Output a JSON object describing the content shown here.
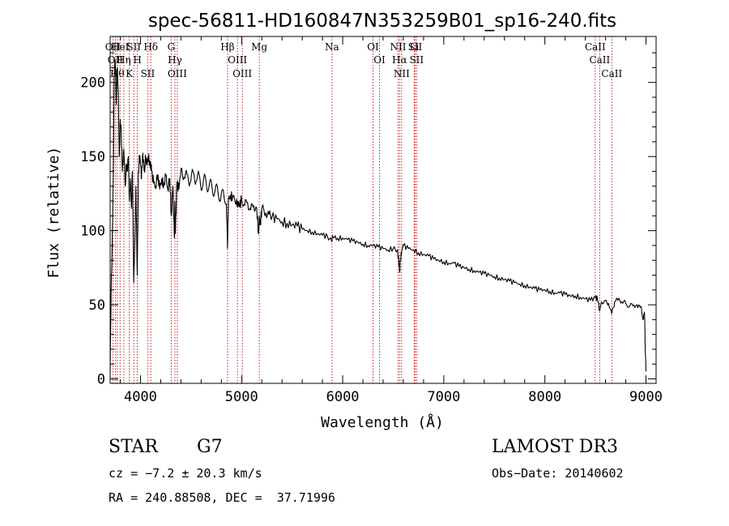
{
  "chart_data": {
    "type": "line",
    "title": "spec-56811-HD160847N353259B01_sp16-240.fits",
    "xlabel": "Wavelength (Å)",
    "ylabel": "Flux (relative)",
    "xlim": [
      3700,
      9100
    ],
    "ylim": [
      -3,
      231
    ],
    "xticks": [
      4000,
      5000,
      6000,
      7000,
      8000,
      9000
    ],
    "yticks": [
      0,
      50,
      100,
      150,
      200
    ],
    "x_minor_step": 200,
    "y_minor_step": 10,
    "grid": false,
    "series": [
      {
        "name": "flux",
        "x": [
          3700,
          3710,
          3720,
          3730,
          3740,
          3750,
          3760,
          3770,
          3780,
          3790,
          3800,
          3810,
          3820,
          3835,
          3850,
          3860,
          3870,
          3880,
          3890,
          3900,
          3910,
          3920,
          3933,
          3945,
          3955,
          3968,
          3980,
          3990,
          4000,
          4010,
          4020,
          4030,
          4040,
          4050,
          4060,
          4075,
          4090,
          4100,
          4110,
          4130,
          4150,
          4170,
          4190,
          4210,
          4230,
          4250,
          4270,
          4290,
          4305,
          4320,
          4335,
          4340,
          4345,
          4360,
          4380,
          4400,
          4430,
          4460,
          4490,
          4520,
          4550,
          4580,
          4610,
          4640,
          4670,
          4700,
          4730,
          4760,
          4790,
          4820,
          4850,
          4861,
          4870,
          4890,
          4910,
          4940,
          4960,
          4980,
          5000,
          5030,
          5060,
          5090,
          5120,
          5150,
          5167,
          5175,
          5185,
          5200,
          5240,
          5270,
          5300,
          5350,
          5400,
          5450,
          5500,
          5550,
          5600,
          5650,
          5700,
          5750,
          5800,
          5850,
          5890,
          5900,
          5950,
          6000,
          6050,
          6100,
          6150,
          6200,
          6250,
          6300,
          6350,
          6400,
          6450,
          6500,
          6540,
          6555,
          6563,
          6570,
          6585,
          6600,
          6650,
          6700,
          6750,
          6800,
          6850,
          6900,
          6950,
          7000,
          7050,
          7100,
          7150,
          7200,
          7250,
          7300,
          7350,
          7400,
          7450,
          7500,
          7550,
          7600,
          7650,
          7700,
          7750,
          7800,
          7850,
          7900,
          7950,
          8000,
          8050,
          8100,
          8150,
          8200,
          8250,
          8300,
          8350,
          8400,
          8450,
          8500,
          8520,
          8542,
          8560,
          8600,
          8630,
          8662,
          8690,
          8720,
          8760,
          8800,
          8840,
          8880,
          8920,
          8950,
          8970,
          8985,
          8990,
          8995,
          9000
        ],
        "values": [
          5,
          60,
          90,
          130,
          205,
          215,
          185,
          210,
          195,
          150,
          175,
          165,
          140,
          155,
          130,
          145,
          140,
          150,
          120,
          135,
          115,
          140,
          65,
          95,
          130,
          70,
          140,
          150,
          145,
          135,
          150,
          148,
          140,
          150,
          144,
          150,
          147,
          145,
          140,
          132,
          130,
          138,
          128,
          135,
          130,
          137,
          128,
          135,
          110,
          130,
          95,
          120,
          98,
          132,
          128,
          142,
          136,
          138,
          132,
          140,
          133,
          138,
          128,
          137,
          127,
          133,
          124,
          130,
          120,
          127,
          118,
          88,
          120,
          124,
          122,
          118,
          120,
          116,
          122,
          117,
          119,
          114,
          117,
          115,
          98,
          110,
          104,
          115,
          112,
          111,
          109,
          108,
          106,
          105,
          104,
          103,
          101,
          100,
          99,
          98,
          97,
          96,
          93,
          96,
          95,
          95,
          94,
          93,
          92,
          91,
          90,
          90,
          89,
          88,
          87,
          88,
          87,
          80,
          72,
          80,
          87,
          90,
          88,
          87,
          85,
          84,
          83,
          81,
          80,
          79,
          78,
          78,
          76,
          75,
          74,
          73,
          72,
          71,
          70,
          69,
          68,
          67,
          66,
          65,
          64,
          63,
          62,
          61,
          60,
          60,
          59,
          58,
          58,
          57,
          56,
          56,
          55,
          54,
          53,
          55,
          54,
          46,
          52,
          53,
          51,
          44,
          52,
          53,
          52,
          51,
          49,
          50,
          48,
          49,
          40,
          45,
          30,
          15,
          5
        ]
      }
    ],
    "lines": [
      {
        "x": 3727,
        "label": "OII"
      },
      {
        "x": 3751,
        "label": "OII"
      },
      {
        "x": 3770,
        "label": "Hθ"
      },
      {
        "x": 3798,
        "label": "HeI"
      },
      {
        "x": 3835,
        "label": "Hη"
      },
      {
        "x": 3889,
        "label": "K"
      },
      {
        "x": 3934,
        "label": "SII"
      },
      {
        "x": 3969,
        "label": "H"
      },
      {
        "x": 4072,
        "label": "SII"
      },
      {
        "x": 4102,
        "label": "Hδ"
      },
      {
        "x": 4304,
        "label": "G"
      },
      {
        "x": 4341,
        "label": "Hγ"
      },
      {
        "x": 4364,
        "label": "OIII"
      },
      {
        "x": 4861,
        "label": "Hβ"
      },
      {
        "x": 4959,
        "label": "OIII"
      },
      {
        "x": 5007,
        "label": "OIII"
      },
      {
        "x": 5175,
        "label": "Mg"
      },
      {
        "x": 5894,
        "label": "Na"
      },
      {
        "x": 6300,
        "label": "OI"
      },
      {
        "x": 6364,
        "label": "OI"
      },
      {
        "x": 6548,
        "label": "NII"
      },
      {
        "x": 6563,
        "label": "Hα"
      },
      {
        "x": 6583,
        "label": "NII"
      },
      {
        "x": 6707,
        "label": "Li"
      },
      {
        "x": 6716,
        "label": "SII"
      },
      {
        "x": 6731,
        "label": "SII"
      },
      {
        "x": 8498,
        "label": "CaII"
      },
      {
        "x": 8542,
        "label": "CaII"
      },
      {
        "x": 8662,
        "label": "CaII"
      }
    ]
  },
  "info": {
    "class_label": "STAR",
    "subclass": "G7",
    "survey": "LAMOST DR3",
    "cz": "cz = −7.2 ± 20.3 km/s",
    "obs_date": "Obs−Date: 20140602",
    "coords": "RA = 240.88508, DEC =  37.71996"
  },
  "colors": {
    "line_marker": "#cc0000",
    "spectrum": "#000000",
    "axis": "#000000"
  }
}
